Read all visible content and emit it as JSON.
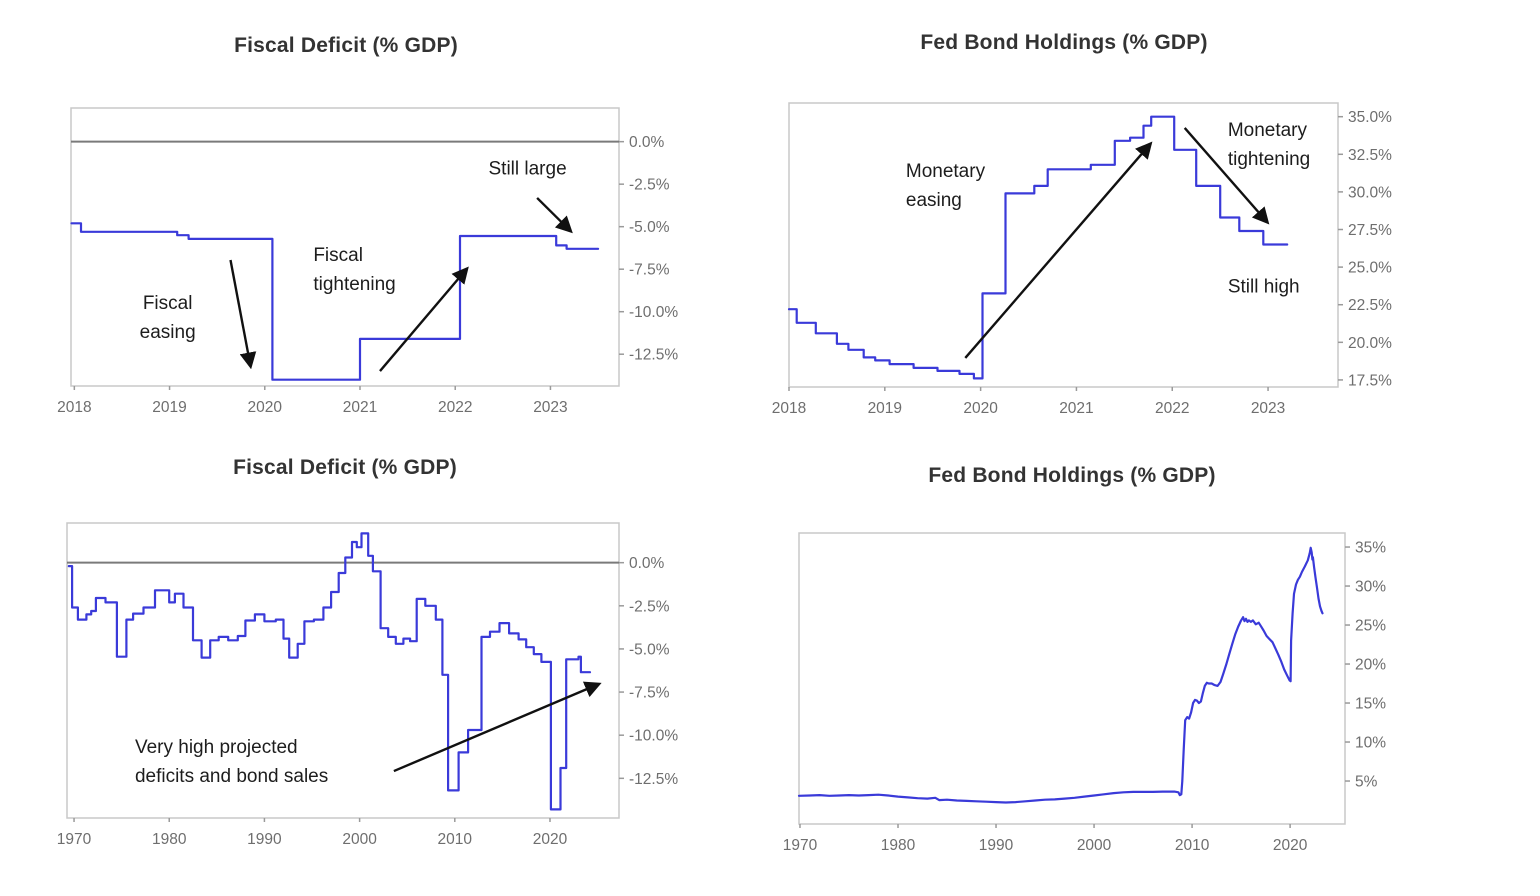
{
  "colors": {
    "line": "#3a3ad9",
    "zero_line": "#7a7a7a",
    "border": "#c8c8c8",
    "tick_dash": "#9a9a9a",
    "tick_text": "#6e6e6e",
    "annotation_text": "#1d1d1d",
    "arrow": "#111111",
    "title_text": "#333333",
    "background": "#ffffff"
  },
  "chart_data": [
    {
      "id": "fiscal-deficit-recent",
      "title": "Fiscal Deficit (% GDP)",
      "type": "line",
      "stepped": true,
      "grid": false,
      "zero_line": true,
      "xlabel": "",
      "ylabel": "",
      "xlim": [
        2017.965,
        2023.72
      ],
      "ylim": [
        -14.37,
        1.98
      ],
      "x_ticks": [
        {
          "v": 2018,
          "label": "2018"
        },
        {
          "v": 2019,
          "label": "2019"
        },
        {
          "v": 2020,
          "label": "2020"
        },
        {
          "v": 2021,
          "label": "2021"
        },
        {
          "v": 2022,
          "label": "2022"
        },
        {
          "v": 2023,
          "label": "2023"
        }
      ],
      "y_ticks": [
        {
          "v": 0,
          "label": "0.0%"
        },
        {
          "v": -2.5,
          "label": "-2.5%"
        },
        {
          "v": -5,
          "label": "-5.0%"
        },
        {
          "v": -7.5,
          "label": "-7.5%"
        },
        {
          "v": -10,
          "label": "-10.0%"
        },
        {
          "v": -12.5,
          "label": "-12.5%"
        }
      ],
      "series": [
        [
          2017.97,
          -4.8
        ],
        [
          2018.07,
          -5.3
        ],
        [
          2019.08,
          -5.5
        ],
        [
          2019.2,
          -5.72
        ],
        [
          2020.08,
          -14.0
        ],
        [
          2021.0,
          -11.6
        ],
        [
          2022.05,
          -5.55
        ],
        [
          2023.06,
          -6.1
        ],
        [
          2023.17,
          -6.3
        ],
        [
          2023.5,
          -6.3
        ]
      ],
      "annotations": [
        {
          "lines": [
            "Fiscal",
            "easing"
          ],
          "x": 2018.98,
          "y": -10.37,
          "align": "center"
        },
        {
          "lines": [
            "Fiscal",
            "tightening"
          ],
          "x": 2020.51,
          "y": -7.55,
          "align": "left"
        },
        {
          "lines": [
            "Still large"
          ],
          "x": 2022.76,
          "y": -1.61,
          "align": "center"
        }
      ],
      "arrows": [
        {
          "x1": 2019.64,
          "y1": -6.96,
          "x2": 2019.85,
          "y2": -13.19
        },
        {
          "x1": 2021.21,
          "y1": -13.49,
          "x2": 2022.12,
          "y2": -7.49
        },
        {
          "x1": 2022.86,
          "y1": -3.31,
          "x2": 2023.21,
          "y2": -5.25
        }
      ]
    },
    {
      "id": "fed-bond-holdings-recent",
      "title": "Fed Bond Holdings (% GDP)",
      "type": "line",
      "stepped": true,
      "grid": false,
      "zero_line": false,
      "xlabel": "",
      "ylabel": "",
      "xlim": [
        2018.0,
        2023.73
      ],
      "ylim": [
        17.03,
        35.91
      ],
      "x_ticks": [
        {
          "v": 2018,
          "label": "2018"
        },
        {
          "v": 2019,
          "label": "2019"
        },
        {
          "v": 2020,
          "label": "2020"
        },
        {
          "v": 2021,
          "label": "2021"
        },
        {
          "v": 2022,
          "label": "2022"
        },
        {
          "v": 2023,
          "label": "2023"
        }
      ],
      "y_ticks": [
        {
          "v": 35,
          "label": "35.0%"
        },
        {
          "v": 32.5,
          "label": "32.5%"
        },
        {
          "v": 30,
          "label": "30.0%"
        },
        {
          "v": 27.5,
          "label": "27.5%"
        },
        {
          "v": 25,
          "label": "25.0%"
        },
        {
          "v": 22.5,
          "label": "22.5%"
        },
        {
          "v": 20,
          "label": "20.0%"
        },
        {
          "v": 17.5,
          "label": "17.5%"
        }
      ],
      "series": [
        [
          2018.0,
          22.2
        ],
        [
          2018.08,
          21.3
        ],
        [
          2018.28,
          20.6
        ],
        [
          2018.5,
          19.9
        ],
        [
          2018.62,
          19.5
        ],
        [
          2018.78,
          19.0
        ],
        [
          2018.9,
          18.8
        ],
        [
          2019.05,
          18.55
        ],
        [
          2019.3,
          18.3
        ],
        [
          2019.55,
          18.1
        ],
        [
          2019.78,
          17.9
        ],
        [
          2019.93,
          17.6
        ],
        [
          2020.02,
          23.25
        ],
        [
          2020.26,
          29.9
        ],
        [
          2020.56,
          30.4
        ],
        [
          2020.7,
          31.5
        ],
        [
          2021.15,
          31.8
        ],
        [
          2021.4,
          33.4
        ],
        [
          2021.56,
          33.6
        ],
        [
          2021.7,
          34.4
        ],
        [
          2021.78,
          35.0
        ],
        [
          2022.02,
          32.8
        ],
        [
          2022.25,
          30.4
        ],
        [
          2022.5,
          28.3
        ],
        [
          2022.7,
          27.4
        ],
        [
          2022.95,
          26.5
        ],
        [
          2023.2,
          26.5
        ]
      ],
      "annotations": [
        {
          "lines": [
            "Monetary",
            "easing"
          ],
          "x": 2019.22,
          "y": 30.39,
          "align": "left"
        },
        {
          "lines": [
            "Monetary",
            "tightening"
          ],
          "x": 2022.58,
          "y": 33.15,
          "align": "left"
        },
        {
          "lines": [
            "Still high"
          ],
          "x": 2022.58,
          "y": 23.69,
          "align": "left"
        }
      ],
      "arrows": [
        {
          "x1": 2019.84,
          "y1": 18.96,
          "x2": 2021.77,
          "y2": 33.18
        },
        {
          "x1": 2022.13,
          "y1": 34.25,
          "x2": 2022.99,
          "y2": 28.0
        }
      ]
    },
    {
      "id": "fiscal-deficit-long",
      "title": "Fiscal Deficit (% GDP)",
      "type": "line",
      "stepped": true,
      "grid": false,
      "zero_line": true,
      "xlabel": "",
      "ylabel": "",
      "xlim": [
        1969.26,
        2027.25
      ],
      "ylim": [
        -14.8,
        2.3
      ],
      "x_ticks": [
        {
          "v": 1970,
          "label": "1970"
        },
        {
          "v": 1980,
          "label": "1980"
        },
        {
          "v": 1990,
          "label": "1990"
        },
        {
          "v": 2000,
          "label": "2000"
        },
        {
          "v": 2010,
          "label": "2010"
        },
        {
          "v": 2020,
          "label": "2020"
        }
      ],
      "y_ticks": [
        {
          "v": 0,
          "label": "0.0%"
        },
        {
          "v": -2.5,
          "label": "-2.5%"
        },
        {
          "v": -5,
          "label": "-5.0%"
        },
        {
          "v": -7.5,
          "label": "-7.5%"
        },
        {
          "v": -10,
          "label": "-10.0%"
        },
        {
          "v": -12.5,
          "label": "-12.5%"
        }
      ],
      "series": [
        [
          1969.45,
          -0.2
        ],
        [
          1969.8,
          -2.6
        ],
        [
          1970.4,
          -3.3
        ],
        [
          1971.3,
          -3.0
        ],
        [
          1971.8,
          -2.8
        ],
        [
          1972.3,
          -2.05
        ],
        [
          1973.3,
          -2.3
        ],
        [
          1974.5,
          -5.45
        ],
        [
          1975.5,
          -3.3
        ],
        [
          1976.2,
          -2.95
        ],
        [
          1977.3,
          -2.6
        ],
        [
          1978.5,
          -1.6
        ],
        [
          1980.0,
          -2.3
        ],
        [
          1980.6,
          -1.8
        ],
        [
          1981.5,
          -2.6
        ],
        [
          1982.5,
          -4.5
        ],
        [
          1983.4,
          -5.5
        ],
        [
          1984.3,
          -4.5
        ],
        [
          1985.2,
          -4.3
        ],
        [
          1986.2,
          -4.5
        ],
        [
          1987.2,
          -4.25
        ],
        [
          1988.0,
          -3.35
        ],
        [
          1989.0,
          -3.0
        ],
        [
          1990.0,
          -3.4
        ],
        [
          1991.2,
          -3.3
        ],
        [
          1992.0,
          -4.4
        ],
        [
          1992.6,
          -5.5
        ],
        [
          1993.5,
          -4.7
        ],
        [
          1994.2,
          -3.4
        ],
        [
          1995.2,
          -3.3
        ],
        [
          1996.2,
          -2.6
        ],
        [
          1997.0,
          -1.7
        ],
        [
          1997.8,
          -0.6
        ],
        [
          1998.5,
          0.3
        ],
        [
          1999.2,
          1.2
        ],
        [
          1999.7,
          0.9
        ],
        [
          2000.2,
          1.7
        ],
        [
          2000.9,
          0.4
        ],
        [
          2001.4,
          -0.5
        ],
        [
          2002.2,
          -3.8
        ],
        [
          2003.0,
          -4.3
        ],
        [
          2003.8,
          -4.7
        ],
        [
          2004.6,
          -4.4
        ],
        [
          2005.3,
          -4.55
        ],
        [
          2006.0,
          -2.1
        ],
        [
          2006.9,
          -2.5
        ],
        [
          2008.0,
          -3.3
        ],
        [
          2008.7,
          -6.5
        ],
        [
          2009.3,
          -13.2
        ],
        [
          2010.4,
          -11.0
        ],
        [
          2011.4,
          -9.7
        ],
        [
          2012.8,
          -4.3
        ],
        [
          2013.7,
          -4.0
        ],
        [
          2014.7,
          -3.5
        ],
        [
          2015.7,
          -4.1
        ],
        [
          2016.7,
          -4.45
        ],
        [
          2017.5,
          -4.9
        ],
        [
          2018.3,
          -5.3
        ],
        [
          2019.1,
          -5.75
        ],
        [
          2020.1,
          -14.3
        ],
        [
          2021.1,
          -11.9
        ],
        [
          2021.7,
          -5.6
        ],
        [
          2023.0,
          -5.45
        ],
        [
          2023.25,
          -6.35
        ],
        [
          2024.2,
          -6.35
        ]
      ],
      "annotations": [
        {
          "lines": [
            "Very high projected",
            "deficits and bond sales"
          ],
          "x": 1976.4,
          "y": -11.56,
          "align": "left"
        }
      ],
      "arrows": [
        {
          "x1": 2003.6,
          "y1": -12.08,
          "x2": 2025.1,
          "y2": -7.04
        }
      ]
    },
    {
      "id": "fed-bond-holdings-long",
      "title": "Fed Bond Holdings (% GDP)",
      "type": "line",
      "stepped": false,
      "grid": false,
      "zero_line": false,
      "xlabel": "",
      "ylabel": "",
      "xlim": [
        1969.9,
        2025.6
      ],
      "ylim": [
        -0.51,
        36.8
      ],
      "x_ticks": [
        {
          "v": 1970,
          "label": "1970"
        },
        {
          "v": 1980,
          "label": "1980"
        },
        {
          "v": 1990,
          "label": "1990"
        },
        {
          "v": 2000,
          "label": "2000"
        },
        {
          "v": 2010,
          "label": "2010"
        },
        {
          "v": 2020,
          "label": "2020"
        }
      ],
      "y_ticks": [
        {
          "v": 35,
          "label": "35%"
        },
        {
          "v": 30,
          "label": "30%"
        },
        {
          "v": 25,
          "label": "25%"
        },
        {
          "v": 20,
          "label": "20%"
        },
        {
          "v": 15,
          "label": "15%"
        },
        {
          "v": 10,
          "label": "10%"
        },
        {
          "v": 5,
          "label": "5%"
        }
      ],
      "series": [
        [
          1969.9,
          3.1
        ],
        [
          1971,
          3.15
        ],
        [
          1972,
          3.2
        ],
        [
          1973,
          3.1
        ],
        [
          1974,
          3.15
        ],
        [
          1975,
          3.2
        ],
        [
          1976,
          3.15
        ],
        [
          1977,
          3.2
        ],
        [
          1978,
          3.25
        ],
        [
          1979,
          3.15
        ],
        [
          1980,
          3.0
        ],
        [
          1981,
          2.9
        ],
        [
          1982,
          2.8
        ],
        [
          1983,
          2.75
        ],
        [
          1983.8,
          2.85
        ],
        [
          1984.2,
          2.55
        ],
        [
          1985,
          2.6
        ],
        [
          1986,
          2.5
        ],
        [
          1987,
          2.45
        ],
        [
          1988,
          2.4
        ],
        [
          1989,
          2.35
        ],
        [
          1990,
          2.3
        ],
        [
          1991,
          2.25
        ],
        [
          1992,
          2.3
        ],
        [
          1993,
          2.4
        ],
        [
          1994,
          2.5
        ],
        [
          1995,
          2.6
        ],
        [
          1996,
          2.65
        ],
        [
          1997,
          2.75
        ],
        [
          1998,
          2.85
        ],
        [
          1999,
          3.0
        ],
        [
          2000,
          3.15
        ],
        [
          2001,
          3.3
        ],
        [
          2002,
          3.45
        ],
        [
          2003,
          3.55
        ],
        [
          2004,
          3.6
        ],
        [
          2005,
          3.6
        ],
        [
          2006,
          3.6
        ],
        [
          2007,
          3.65
        ],
        [
          2008.2,
          3.65
        ],
        [
          2008.6,
          3.55
        ],
        [
          2008.75,
          3.2
        ],
        [
          2008.9,
          3.3
        ],
        [
          2009.0,
          5.0
        ],
        [
          2009.15,
          9.0
        ],
        [
          2009.3,
          12.8
        ],
        [
          2009.5,
          13.2
        ],
        [
          2009.7,
          13.0
        ],
        [
          2009.9,
          13.8
        ],
        [
          2010.1,
          15.0
        ],
        [
          2010.3,
          15.4
        ],
        [
          2010.5,
          15.3
        ],
        [
          2010.7,
          15.0
        ],
        [
          2010.9,
          15.2
        ],
        [
          2011.1,
          16.3
        ],
        [
          2011.3,
          17.2
        ],
        [
          2011.5,
          17.6
        ],
        [
          2011.7,
          17.5
        ],
        [
          2012.0,
          17.5
        ],
        [
          2012.3,
          17.3
        ],
        [
          2012.6,
          17.2
        ],
        [
          2012.9,
          17.7
        ],
        [
          2013.2,
          18.8
        ],
        [
          2013.5,
          20.0
        ],
        [
          2013.8,
          21.3
        ],
        [
          2014.1,
          22.6
        ],
        [
          2014.4,
          23.8
        ],
        [
          2014.7,
          24.8
        ],
        [
          2015.0,
          25.6
        ],
        [
          2015.2,
          26.0
        ],
        [
          2015.35,
          25.5
        ],
        [
          2015.5,
          25.8
        ],
        [
          2015.65,
          25.4
        ],
        [
          2015.8,
          25.6
        ],
        [
          2016.0,
          25.4
        ],
        [
          2016.2,
          25.6
        ],
        [
          2016.5,
          25.1
        ],
        [
          2016.8,
          25.3
        ],
        [
          2017.0,
          24.9
        ],
        [
          2017.3,
          24.3
        ],
        [
          2017.6,
          23.6
        ],
        [
          2017.9,
          23.2
        ],
        [
          2018.2,
          22.8
        ],
        [
          2018.5,
          22.0
        ],
        [
          2018.8,
          21.2
        ],
        [
          2019.1,
          20.3
        ],
        [
          2019.4,
          19.3
        ],
        [
          2019.7,
          18.5
        ],
        [
          2019.95,
          17.9
        ],
        [
          2020.05,
          17.8
        ],
        [
          2020.1,
          23.0
        ],
        [
          2020.25,
          26.5
        ],
        [
          2020.4,
          29.0
        ],
        [
          2020.6,
          30.2
        ],
        [
          2020.8,
          30.8
        ],
        [
          2021.0,
          31.2
        ],
        [
          2021.2,
          31.8
        ],
        [
          2021.5,
          32.5
        ],
        [
          2021.8,
          33.3
        ],
        [
          2022.0,
          34.2
        ],
        [
          2022.1,
          34.9
        ],
        [
          2022.2,
          34.3
        ],
        [
          2022.27,
          33.4
        ],
        [
          2022.33,
          33.7
        ],
        [
          2022.45,
          32.4
        ],
        [
          2022.6,
          31.0
        ],
        [
          2022.75,
          29.7
        ],
        [
          2022.9,
          28.4
        ],
        [
          2023.05,
          27.4
        ],
        [
          2023.2,
          26.8
        ],
        [
          2023.3,
          26.5
        ]
      ],
      "annotations": [],
      "arrows": []
    }
  ]
}
